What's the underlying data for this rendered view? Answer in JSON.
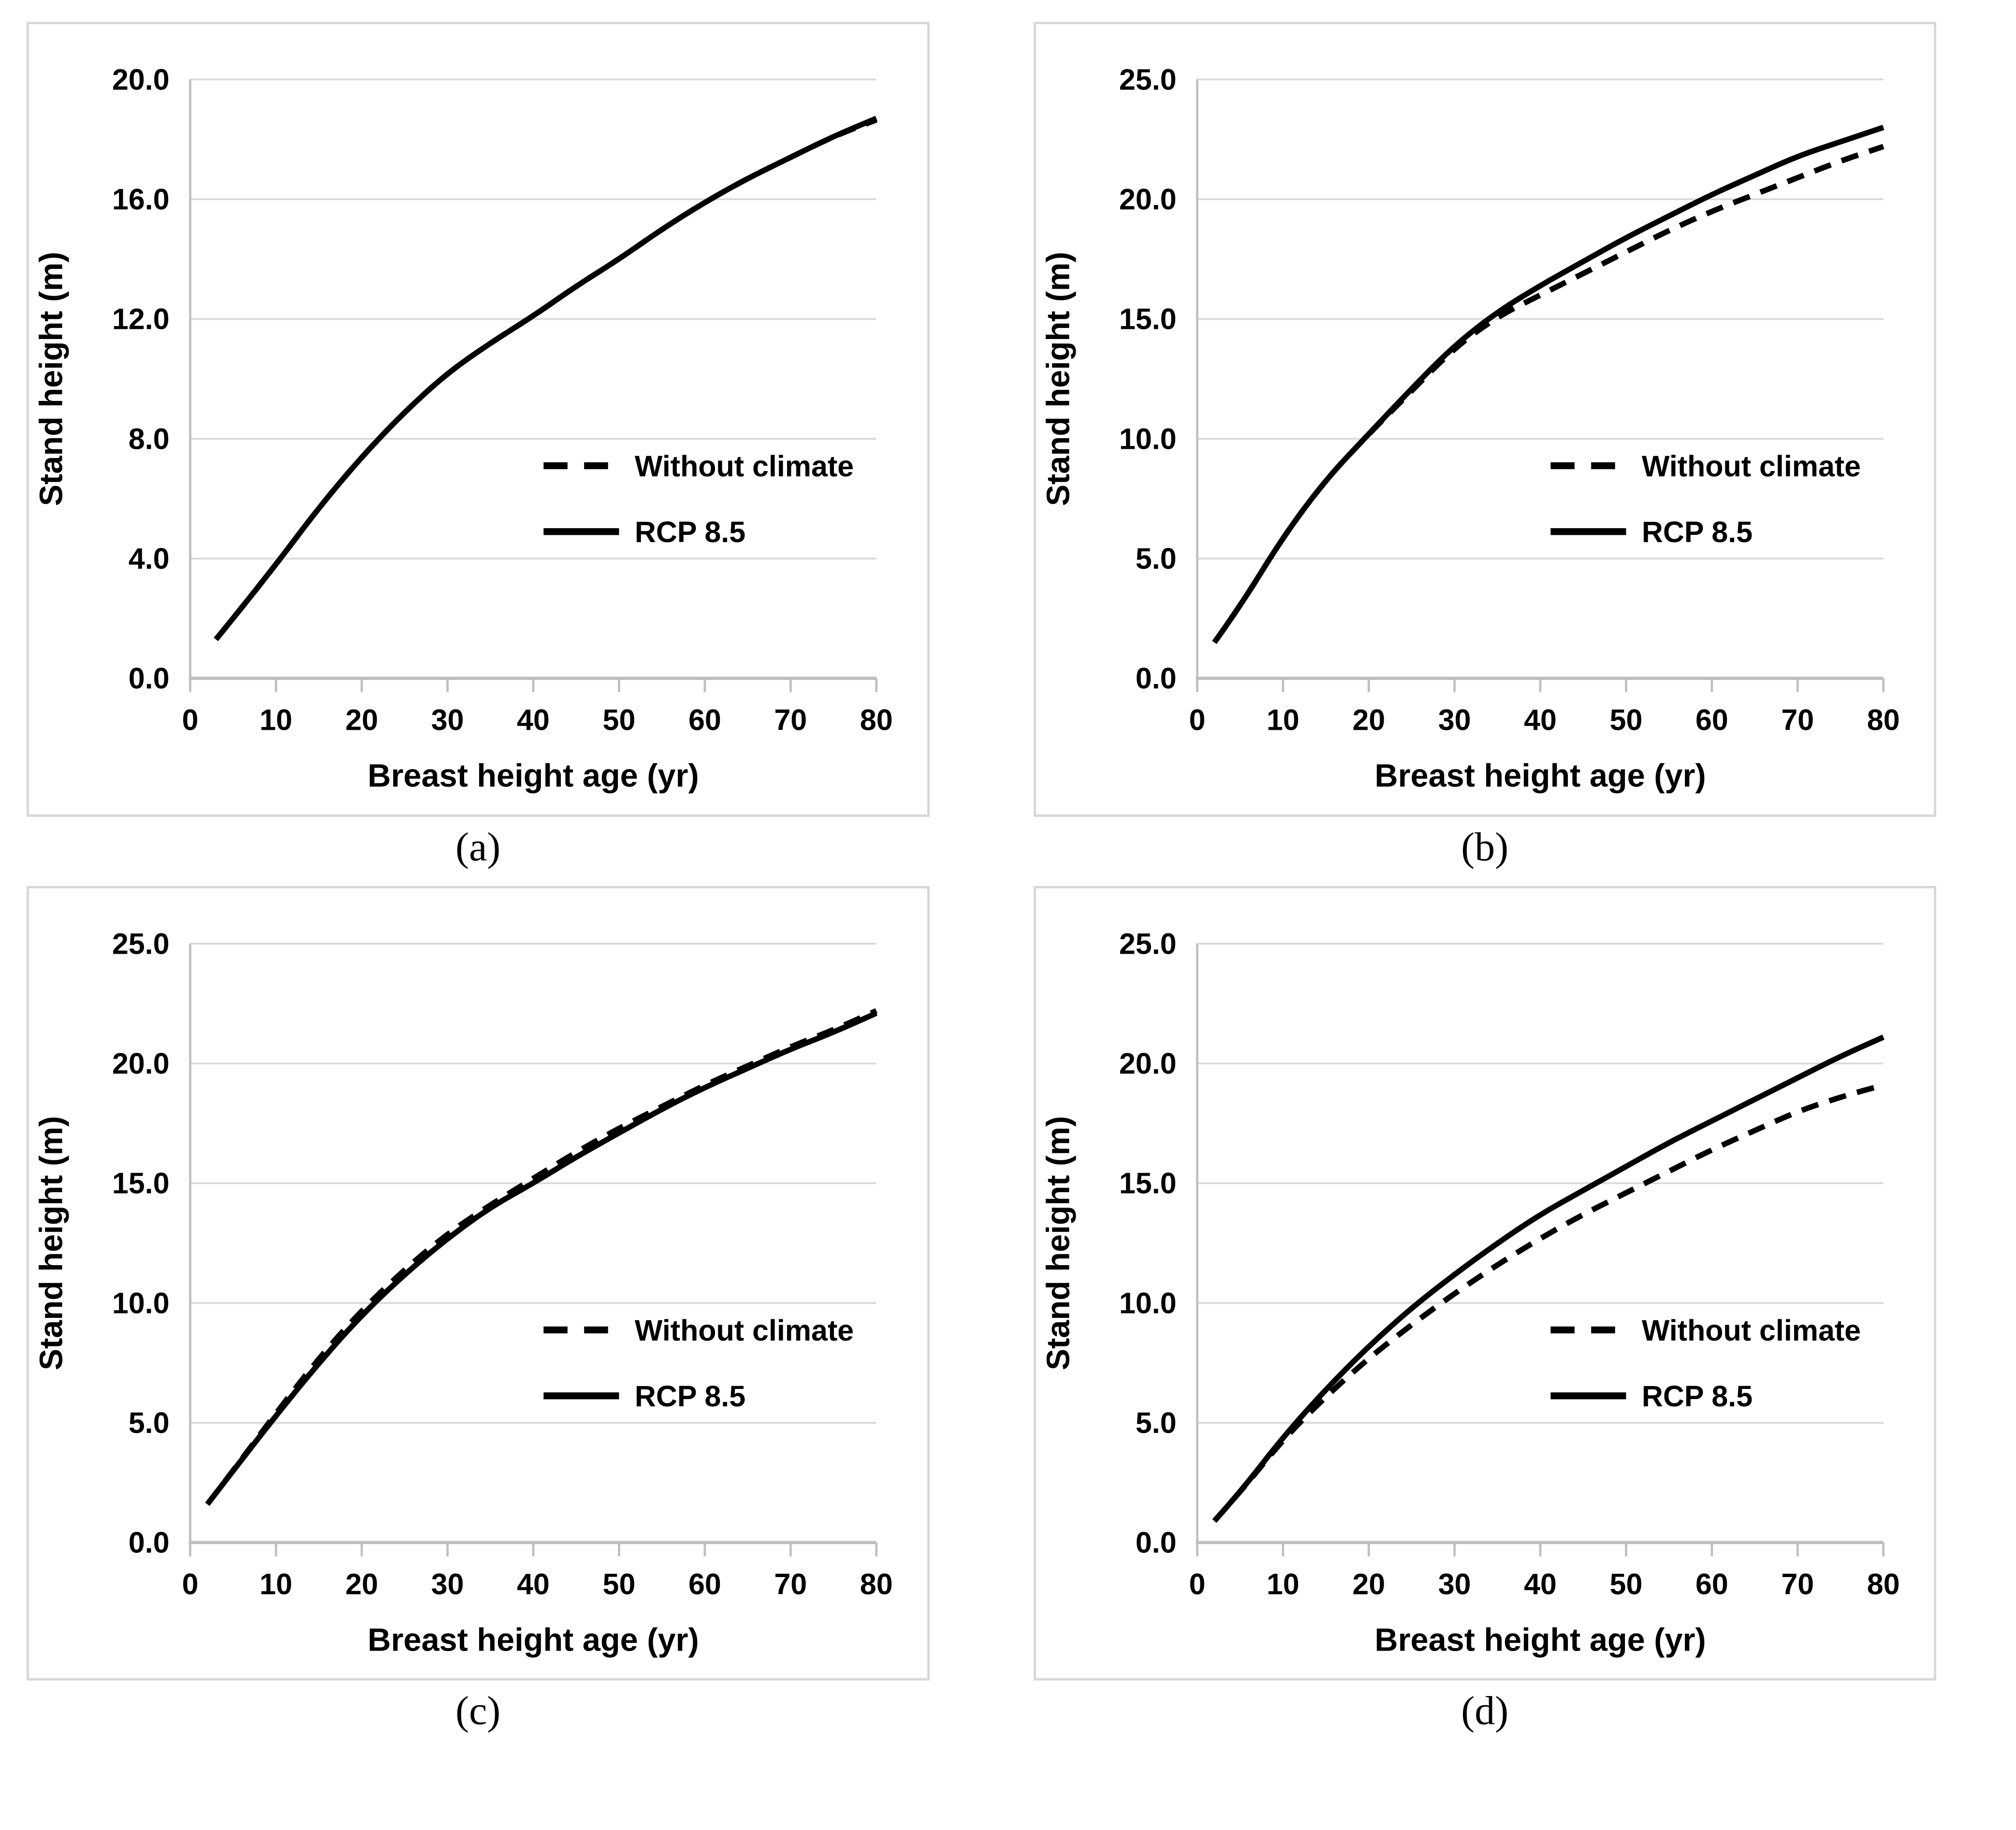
{
  "figure": {
    "xlabel": "Breast height age (yr)",
    "ylabel": "Stand height (m)",
    "colors": {
      "curve": "#000000",
      "gridline": "#d9d9d9",
      "axis": "#bfbfbf",
      "tick": "#bfbfbf",
      "panel_border": "#d8d8d8",
      "text": "#000000",
      "background": "#ffffff"
    }
  },
  "chart_data": [
    {
      "id": "a",
      "caption": "(a)",
      "type": "line",
      "title": "",
      "xlabel": "Breast height age (yr)",
      "ylabel": "Stand height (m)",
      "xlim": [
        0,
        80
      ],
      "ylim": [
        0,
        20
      ],
      "xticks": [
        0,
        10,
        20,
        30,
        40,
        50,
        60,
        70,
        80
      ],
      "ytick_values": [
        0,
        4,
        8,
        12,
        16,
        20
      ],
      "ytick_labels": [
        "0.0",
        "4.0",
        "8.0",
        "12.0",
        "16.0",
        "20.0"
      ],
      "grid": "horizontal",
      "legend_position": "middle-right",
      "x": [
        3,
        5,
        10,
        15,
        20,
        25,
        30,
        35,
        40,
        45,
        50,
        55,
        60,
        65,
        70,
        75,
        80
      ],
      "series": [
        {
          "name": "Without climate",
          "style": "dashed",
          "values": [
            1.3,
            2.0,
            3.8,
            5.7,
            7.4,
            8.9,
            10.2,
            11.2,
            12.1,
            13.1,
            14.0,
            15.0,
            15.9,
            16.7,
            17.4,
            18.1,
            18.65
          ]
        },
        {
          "name": "RCP 8.5",
          "style": "solid",
          "values": [
            1.3,
            2.0,
            3.8,
            5.7,
            7.4,
            8.9,
            10.2,
            11.2,
            12.1,
            13.1,
            14.0,
            15.0,
            15.9,
            16.7,
            17.4,
            18.1,
            18.7
          ]
        }
      ],
      "legend": [
        {
          "label": "Without climate",
          "style": "dashed"
        },
        {
          "label": "RCP 8.5",
          "style": "solid"
        }
      ]
    },
    {
      "id": "b",
      "caption": "(b)",
      "type": "line",
      "title": "",
      "xlabel": "Breast height age (yr)",
      "ylabel": "Stand height (m)",
      "xlim": [
        0,
        80
      ],
      "ylim": [
        0,
        25
      ],
      "xticks": [
        0,
        10,
        20,
        30,
        40,
        50,
        60,
        70,
        80
      ],
      "ytick_values": [
        0,
        5,
        10,
        15,
        20,
        25
      ],
      "ytick_labels": [
        "0.0",
        "5.0",
        "10.0",
        "15.0",
        "20.0",
        "25.0"
      ],
      "grid": "horizontal",
      "legend_position": "middle-right",
      "x": [
        2,
        5,
        10,
        15,
        20,
        25,
        30,
        35,
        40,
        45,
        50,
        55,
        60,
        65,
        70,
        75,
        80
      ],
      "series": [
        {
          "name": "Without climate",
          "style": "dashed",
          "values": [
            1.5,
            3.0,
            5.9,
            8.3,
            10.2,
            12.0,
            13.8,
            15.1,
            16.0,
            16.9,
            17.8,
            18.7,
            19.5,
            20.2,
            20.9,
            21.6,
            22.2
          ]
        },
        {
          "name": "RCP 8.5",
          "style": "solid",
          "values": [
            1.5,
            3.0,
            5.9,
            8.3,
            10.2,
            12.1,
            13.9,
            15.3,
            16.4,
            17.4,
            18.4,
            19.3,
            20.2,
            21.0,
            21.8,
            22.4,
            23.0
          ]
        }
      ],
      "legend": [
        {
          "label": "Without climate",
          "style": "dashed"
        },
        {
          "label": "RCP 8.5",
          "style": "solid"
        }
      ]
    },
    {
      "id": "c",
      "caption": "(c)",
      "type": "line",
      "title": "",
      "xlabel": "Breast height age (yr)",
      "ylabel": "Stand height (m)",
      "xlim": [
        0,
        80
      ],
      "ylim": [
        0,
        25
      ],
      "xticks": [
        0,
        10,
        20,
        30,
        40,
        50,
        60,
        70,
        80
      ],
      "ytick_values": [
        0,
        5,
        10,
        15,
        20,
        25
      ],
      "ytick_labels": [
        "0.0",
        "5.0",
        "10.0",
        "15.0",
        "20.0",
        "25.0"
      ],
      "grid": "horizontal",
      "legend_position": "middle-right",
      "x": [
        2,
        5,
        10,
        15,
        20,
        25,
        30,
        35,
        40,
        45,
        50,
        55,
        60,
        65,
        70,
        75,
        80
      ],
      "series": [
        {
          "name": "Without climate",
          "style": "dashed",
          "values": [
            1.6,
            3.0,
            5.4,
            7.7,
            9.7,
            11.4,
            12.9,
            14.1,
            15.2,
            16.3,
            17.3,
            18.2,
            19.1,
            19.9,
            20.7,
            21.4,
            22.2
          ]
        },
        {
          "name": "RCP 8.5",
          "style": "solid",
          "values": [
            1.6,
            3.0,
            5.3,
            7.5,
            9.5,
            11.2,
            12.7,
            14.0,
            15.0,
            16.1,
            17.1,
            18.1,
            19.0,
            19.8,
            20.6,
            21.3,
            22.1
          ]
        }
      ],
      "legend": [
        {
          "label": "Without climate",
          "style": "dashed"
        },
        {
          "label": "RCP 8.5",
          "style": "solid"
        }
      ]
    },
    {
      "id": "d",
      "caption": "(d)",
      "type": "line",
      "title": "",
      "xlabel": "Breast height age (yr)",
      "ylabel": "Stand height (m)",
      "xlim": [
        0,
        80
      ],
      "ylim": [
        0,
        25
      ],
      "xticks": [
        0,
        10,
        20,
        30,
        40,
        50,
        60,
        70,
        80
      ],
      "ytick_values": [
        0,
        5,
        10,
        15,
        20,
        25
      ],
      "ytick_labels": [
        "0.0",
        "5.0",
        "10.0",
        "15.0",
        "20.0",
        "25.0"
      ],
      "grid": "horizontal",
      "legend_position": "middle-right",
      "x": [
        2,
        5,
        10,
        15,
        20,
        25,
        30,
        35,
        40,
        45,
        50,
        55,
        60,
        65,
        70,
        75,
        80
      ],
      "series": [
        {
          "name": "Without climate",
          "style": "dashed",
          "values": [
            0.9,
            2.1,
            4.3,
            6.1,
            7.7,
            9.1,
            10.4,
            11.6,
            12.7,
            13.7,
            14.6,
            15.5,
            16.4,
            17.2,
            18.0,
            18.6,
            19.1
          ]
        },
        {
          "name": "RCP 8.5",
          "style": "solid",
          "values": [
            0.9,
            2.1,
            4.4,
            6.4,
            8.2,
            9.8,
            11.2,
            12.5,
            13.7,
            14.7,
            15.7,
            16.7,
            17.6,
            18.5,
            19.4,
            20.3,
            21.1
          ]
        }
      ],
      "legend": [
        {
          "label": "Without climate",
          "style": "dashed"
        },
        {
          "label": "RCP 8.5",
          "style": "solid"
        }
      ]
    }
  ]
}
